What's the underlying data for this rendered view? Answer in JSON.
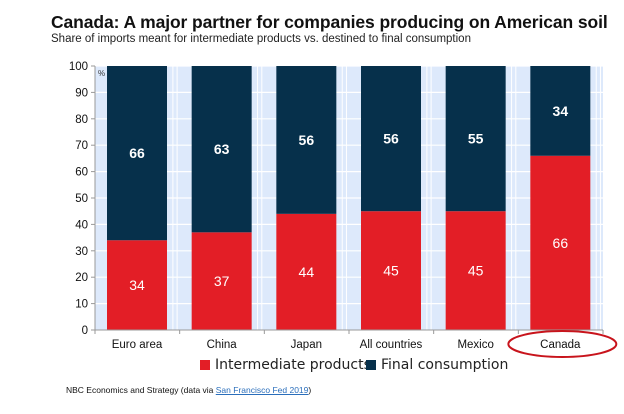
{
  "header": {
    "title": "Canada: A major partner for companies producing on American soil",
    "subtitle": "Share of imports meant for intermediate products vs. destined to final consumption"
  },
  "footer": {
    "source_prefix": "NBC Economics and Strategy (data via ",
    "source_link": "San Francisco Fed 2019",
    "source_suffix": ")"
  },
  "colors": {
    "intermediate": "#e31e26",
    "final": "#06304b",
    "plot_bg": "#dde9fb",
    "grid": "#ffffff",
    "highlight_circle": "#c8141c"
  },
  "chart_data": {
    "type": "bar",
    "stacked": true,
    "title": "Canada: A major partner for companies producing on American soil",
    "subtitle": "Share of imports meant for intermediate products vs. destined to final consumption",
    "xlabel": "",
    "ylabel": "%",
    "unit_label": "%",
    "ylim": [
      0,
      100
    ],
    "yticks": [
      0,
      10,
      20,
      30,
      40,
      50,
      60,
      70,
      80,
      90,
      100
    ],
    "grid": true,
    "legend_position": "bottom",
    "categories": [
      "Euro area",
      "China",
      "Japan",
      "All countries",
      "Mexico",
      "Canada"
    ],
    "series": [
      {
        "name": "Intermediate products",
        "values": [
          34,
          37,
          44,
          45,
          45,
          66
        ]
      },
      {
        "name": "Final consumption",
        "values": [
          66,
          63,
          56,
          56,
          55,
          34
        ]
      }
    ],
    "annotations": [
      {
        "type": "circle",
        "target": "Canada"
      }
    ]
  }
}
